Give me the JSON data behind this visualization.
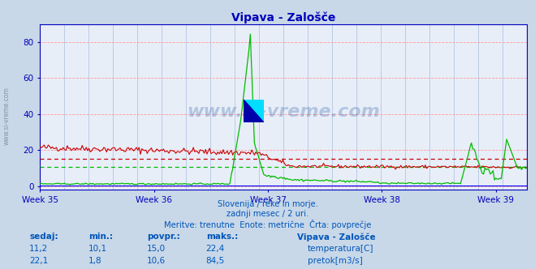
{
  "title": "Vipava - Zalošče",
  "fig_background": "#c8d8e8",
  "plot_background": "#e8eef8",
  "grid_color_h": "#ff9999",
  "grid_color_v": "#aabbdd",
  "y_ticks": [
    0,
    20,
    40,
    60,
    80
  ],
  "ylim": [
    -2,
    90
  ],
  "temp_avg": 15.0,
  "flow_avg": 10.6,
  "temp_color": "#cc0000",
  "flow_color": "#00bb00",
  "height_color": "#0000ff",
  "axis_color": "#0000bb",
  "title_color": "#0000bb",
  "subtitle_lines": [
    "Slovenija / reke in morje.",
    "zadnji mesec / 2 uri.",
    "Meritve: trenutne  Enote: metrične  Črta: povprečje"
  ],
  "subtitle_color": "#0055bb",
  "table_headers": [
    "sedaj:",
    "min.:",
    "povpr.:",
    "maks.:",
    "Vipava - Zalošče"
  ],
  "table_row1": [
    "11,2",
    "10,1",
    "15,0",
    "22,4",
    "temperatura[C]"
  ],
  "table_row2": [
    "22,1",
    "1,8",
    "10,6",
    "84,5",
    "pretok[m3/s]"
  ],
  "watermark": "www.si-vreme.com",
  "watermark_color": "#3366aa",
  "num_points": 360,
  "week_ticks": [
    0,
    84,
    168,
    252,
    336
  ],
  "week_labels": [
    "Week 35",
    "Week 36",
    "Week 37",
    "Week 38",
    "Week 39"
  ]
}
